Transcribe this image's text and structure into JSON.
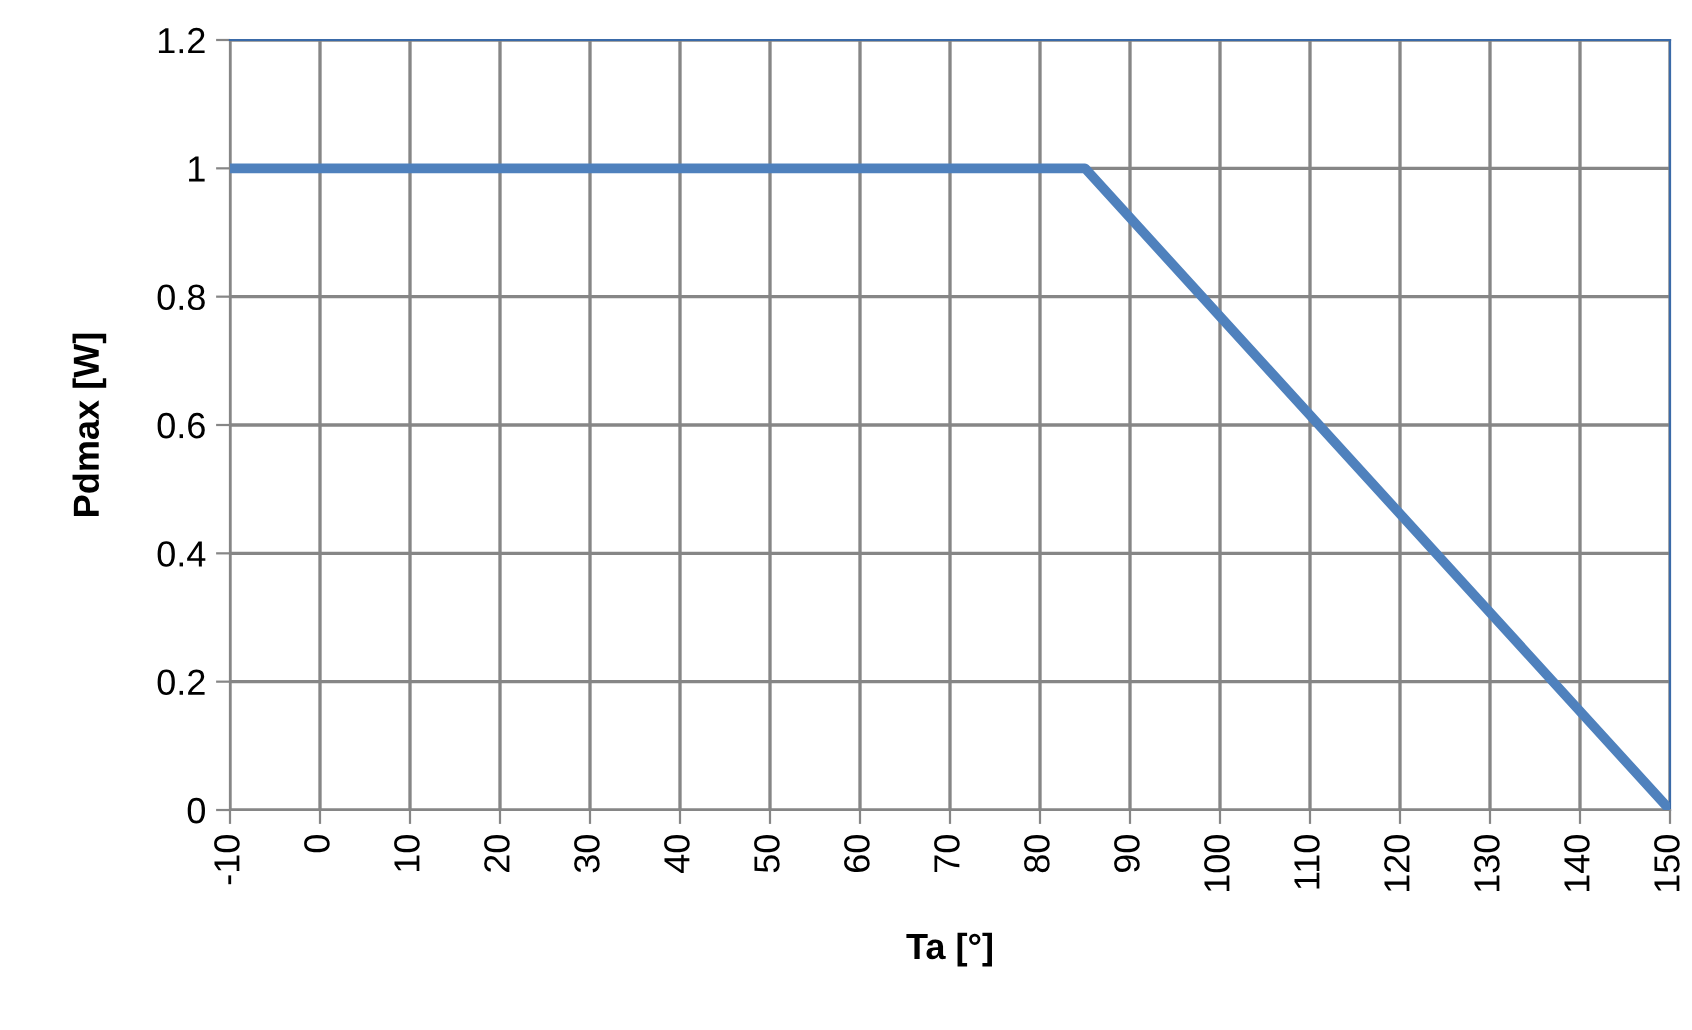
{
  "chart_data": {
    "type": "line",
    "xlabel": "Ta [°]",
    "ylabel": "Pdmax [W]",
    "x": [
      -10,
      85,
      150
    ],
    "series": [
      {
        "color": "#4f81bd",
        "values": [
          1,
          1,
          0
        ]
      }
    ],
    "xlim": [
      -10,
      150
    ],
    "xticks": [
      -10,
      0,
      10,
      20,
      30,
      40,
      50,
      60,
      70,
      80,
      90,
      100,
      110,
      120,
      130,
      140,
      150
    ],
    "ylim": [
      0,
      1.2
    ],
    "yticks": [
      0,
      0.2,
      0.4,
      0.6,
      0.8,
      1,
      1.2
    ],
    "grid": true,
    "legend": false,
    "marker": "none",
    "line_style": "solid"
  }
}
